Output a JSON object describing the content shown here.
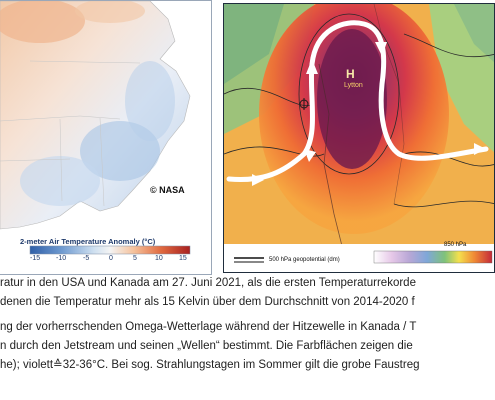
{
  "left_map": {
    "copyright": "© NASA",
    "legend_title": "2-meter Air Temperature Anomaly (°C)",
    "ticks": [
      "-15",
      "-10",
      "-5",
      "0",
      "5",
      "10",
      "15"
    ],
    "scale_colors": [
      "#2f5fa8",
      "#5f8fc9",
      "#a9c7e6",
      "#f4f4f4",
      "#f7c9a3",
      "#e57a4b",
      "#b22a2a"
    ]
  },
  "right_map": {
    "high_label": "H",
    "city_label": "Lytton",
    "legend_label": "500 hPa geopotential (dm)",
    "hpa_label": "850 hPa"
  },
  "caption": {
    "line1": "ratur in den USA und Kanada am 27. Juni 2021, als die ersten Temperaturrekorde",
    "line2": "denen die Temperatur mehr als 15 Kelvin über dem Durchschnitt von 2014-2020 f",
    "line3": "ng der vorherrschenden Omega-Wetterlage während der Hitzewelle in Kanada / T",
    "line4": "n durch den Jetstream und seinen „Wellen“ bestimmt. Die Farbflächen zeigen die",
    "line5": "he); violett≙32-36°C. Bei sog. Strahlungstagen im Sommer gilt die grobe Faustreg"
  }
}
